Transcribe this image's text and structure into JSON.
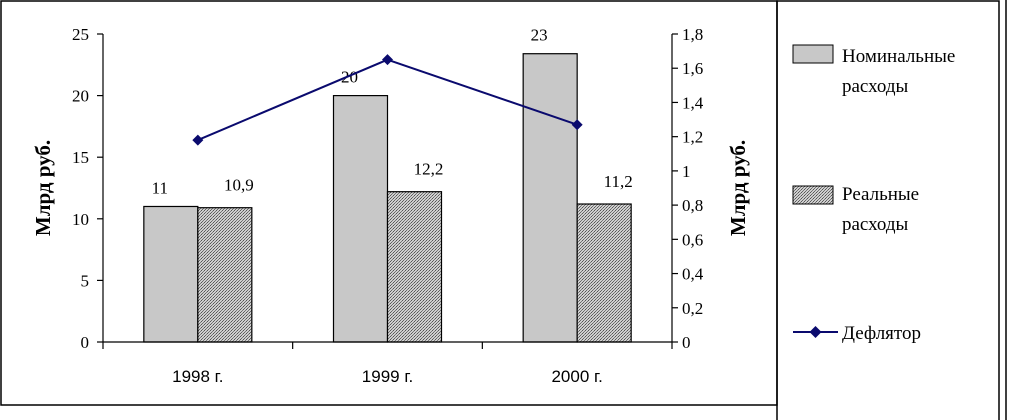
{
  "chart_data": {
    "type": "bar",
    "categories": [
      "1998 г.",
      "1999 г.",
      "2000 г."
    ],
    "series": [
      {
        "name": "Номинальные расходы",
        "kind": "bar",
        "axis": "left",
        "values": [
          11,
          20,
          23.4
        ],
        "labels": [
          "11",
          "20",
          "23"
        ],
        "color": "#c8c8c8"
      },
      {
        "name": "Реальные расходы",
        "kind": "bar",
        "axis": "left",
        "values": [
          10.9,
          12.2,
          11.2
        ],
        "labels": [
          "10,9",
          "12,2",
          "11,2"
        ],
        "color": "#9a9a9a",
        "pattern": "dotted"
      },
      {
        "name": "Дефлятор",
        "kind": "line",
        "axis": "right",
        "values": [
          1.18,
          1.65,
          1.27
        ],
        "color": "#0a0a6e",
        "marker": "diamond"
      }
    ],
    "y_left": {
      "label": "Млрд руб.",
      "ylim": [
        0,
        25
      ],
      "ticks": [
        "0",
        "5",
        "10",
        "15",
        "20",
        "25"
      ]
    },
    "y_right": {
      "label": "Млрд руб.",
      "ylim": [
        0,
        1.8
      ],
      "ticks": [
        "0",
        "0,2",
        "0,4",
        "0,6",
        "0,8",
        "1",
        "1,2",
        "1,4",
        "1,6",
        "1,8"
      ]
    },
    "grid": false,
    "legend": {
      "position": "right",
      "lines": [
        [
          "Номинальные",
          "расходы"
        ],
        [
          "Реальные",
          "расходы"
        ],
        [
          "Дефлятор"
        ]
      ]
    }
  }
}
